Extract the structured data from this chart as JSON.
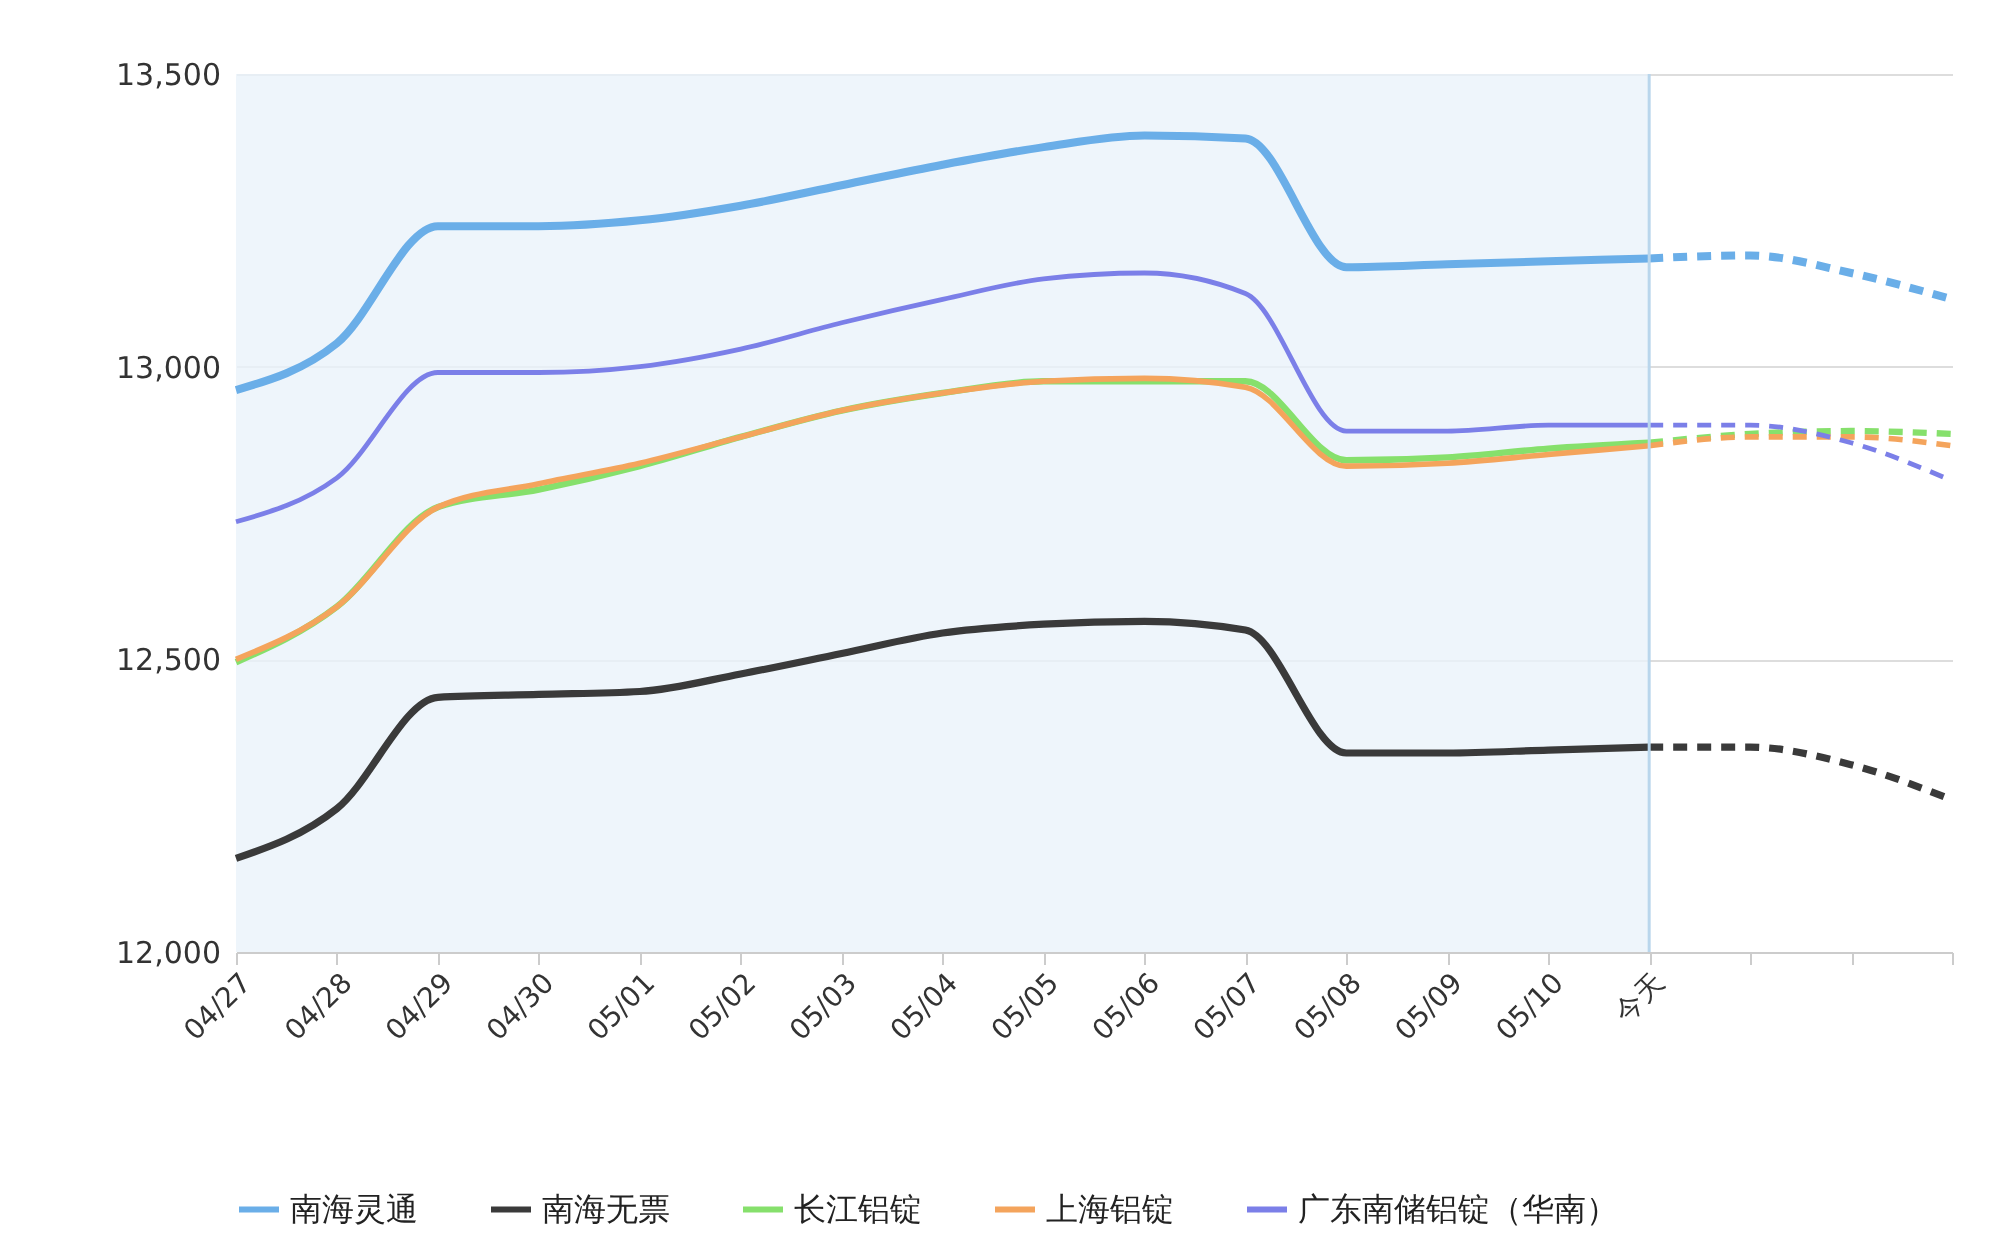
{
  "chart_data": {
    "type": "line",
    "categories": [
      "04/27",
      "04/28",
      "04/29",
      "04/30",
      "05/01",
      "05/02",
      "05/03",
      "05/04",
      "05/05",
      "05/06",
      "05/07",
      "05/08",
      "05/09",
      "05/10",
      "今天",
      null,
      null,
      null
    ],
    "series": [
      {
        "name": "南海灵通",
        "color": "#6aaee8",
        "values": [
          12960,
          13040,
          13240,
          13240,
          13250,
          13275,
          13310,
          13345,
          13375,
          13395,
          13390,
          13170,
          13175,
          13180,
          13185,
          null,
          null,
          null
        ]
      },
      {
        "name": "南海无票",
        "color": "#3a3a3a",
        "values": [
          12160,
          12245,
          12435,
          12440,
          12445,
          12475,
          12510,
          12545,
          12560,
          12565,
          12550,
          12340,
          12340,
          12345,
          12350,
          null,
          null,
          null
        ]
      },
      {
        "name": "长江铝锭",
        "color": "#86e06c",
        "values": [
          12495,
          12590,
          12760,
          12790,
          12830,
          12880,
          12925,
          12955,
          12975,
          12975,
          12975,
          12840,
          12845,
          12860,
          12870,
          null,
          null,
          null
        ]
      },
      {
        "name": "上海铝锭",
        "color": "#f4a45c",
        "values": [
          12500,
          12590,
          12760,
          12800,
          12835,
          12880,
          12925,
          12955,
          12975,
          12980,
          12965,
          12830,
          12835,
          12850,
          12865,
          null,
          null,
          null
        ]
      },
      {
        "name": "广东南储铝锭（华南）",
        "color": "#7b7fe8",
        "values": [
          12735,
          12810,
          12990,
          12990,
          13000,
          13030,
          13075,
          13115,
          13150,
          13160,
          13125,
          12890,
          12890,
          12900,
          12900,
          null,
          null,
          null
        ]
      },
      {
        "color": "#6aaee8",
        "line_style": "dashed",
        "values": [
          null,
          null,
          null,
          null,
          null,
          null,
          null,
          null,
          null,
          null,
          null,
          null,
          null,
          null,
          13185,
          13190,
          13160,
          13115
        ]
      },
      {
        "color": "#3a3a3a",
        "line_style": "dashed",
        "values": [
          null,
          null,
          null,
          null,
          null,
          null,
          null,
          null,
          null,
          null,
          null,
          null,
          null,
          null,
          12350,
          12350,
          12320,
          12260
        ]
      },
      {
        "color": "#86e06c",
        "line_style": "dashed",
        "values": [
          null,
          null,
          null,
          null,
          null,
          null,
          null,
          null,
          null,
          null,
          null,
          null,
          null,
          null,
          12870,
          12885,
          12890,
          12885
        ]
      },
      {
        "color": "#f4a45c",
        "line_style": "dashed",
        "values": [
          null,
          null,
          null,
          null,
          null,
          null,
          null,
          null,
          null,
          null,
          null,
          null,
          null,
          null,
          12865,
          12880,
          12880,
          12865
        ]
      },
      {
        "color": "#7b7fe8",
        "line_style": "dashed",
        "values": [
          null,
          null,
          null,
          null,
          null,
          null,
          null,
          null,
          null,
          null,
          null,
          null,
          null,
          null,
          12900,
          12900,
          12870,
          12805
        ]
      }
    ],
    "ylim": [
      12000,
      13500
    ],
    "yticks": [
      {
        "value": 12000,
        "label": "12,000"
      },
      {
        "value": 12500,
        "label": "12,500"
      },
      {
        "value": 13000,
        "label": "13,000"
      },
      {
        "value": 13500,
        "label": "13,500"
      }
    ],
    "grid": "y",
    "legend": "bottom",
    "marker": "none",
    "line_style": "solid",
    "bands": [
      {
        "axis": "x",
        "from": "04/27",
        "to": "今天",
        "color": "#eaf2fa"
      }
    ],
    "ref_lines": [
      {
        "axis": "x",
        "value": "今天",
        "color": "#b9d6ec"
      }
    ]
  }
}
